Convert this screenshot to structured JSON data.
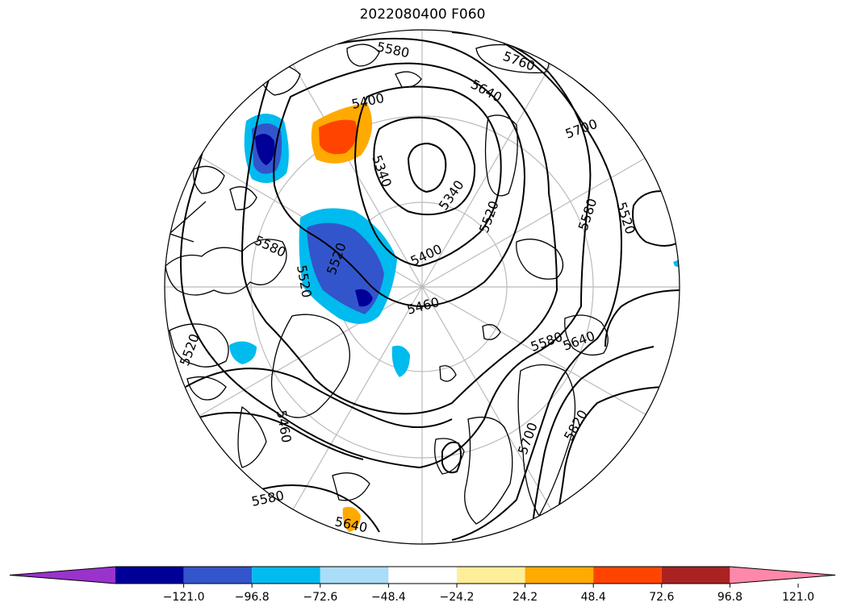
{
  "title": "2022080400 F060",
  "contour_labels": [
    "5580",
    "5760",
    "5640",
    "5400",
    "5700",
    "5340",
    "5340",
    "5520",
    "5520",
    "5580",
    "5580",
    "5520",
    "5400",
    "5520",
    "5460",
    "5580",
    "5640",
    "5520",
    "5460",
    "5700",
    "5820",
    "5580",
    "5640"
  ],
  "colorbar": {
    "colors": [
      "#9933cc",
      "#000099",
      "#3355cc",
      "#00bbee",
      "#aaddf7",
      "#ffffff",
      "#ffee99",
      "#ffaa00",
      "#ff4400",
      "#aa2222",
      "#ff88aa"
    ],
    "ticks": [
      "−121.0",
      "−96.8",
      "−72.6",
      "−48.4",
      "−24.2",
      "24.2",
      "48.4",
      "72.6",
      "96.8",
      "121.0"
    ]
  }
}
